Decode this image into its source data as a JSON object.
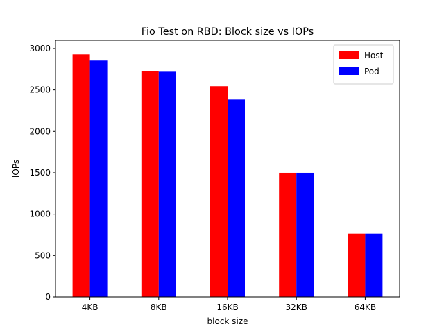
{
  "chart_data": {
    "type": "bar",
    "title": "Fio Test on RBD: Block size vs IOPs",
    "xlabel": "block size",
    "ylabel": "IOPs",
    "categories": [
      "4KB",
      "8KB",
      "16KB",
      "32KB",
      "64KB"
    ],
    "ylim": [
      0,
      3100
    ],
    "yticks": [
      0,
      500,
      1000,
      1500,
      2000,
      2500,
      3000
    ],
    "grid": false,
    "legend_position": "top-right",
    "series": [
      {
        "name": "Host",
        "color": "#ff0000",
        "values": [
          2930,
          2725,
          2545,
          1500,
          765
        ]
      },
      {
        "name": "Pod",
        "color": "#0000ff",
        "values": [
          2855,
          2720,
          2385,
          1500,
          765
        ]
      }
    ]
  }
}
